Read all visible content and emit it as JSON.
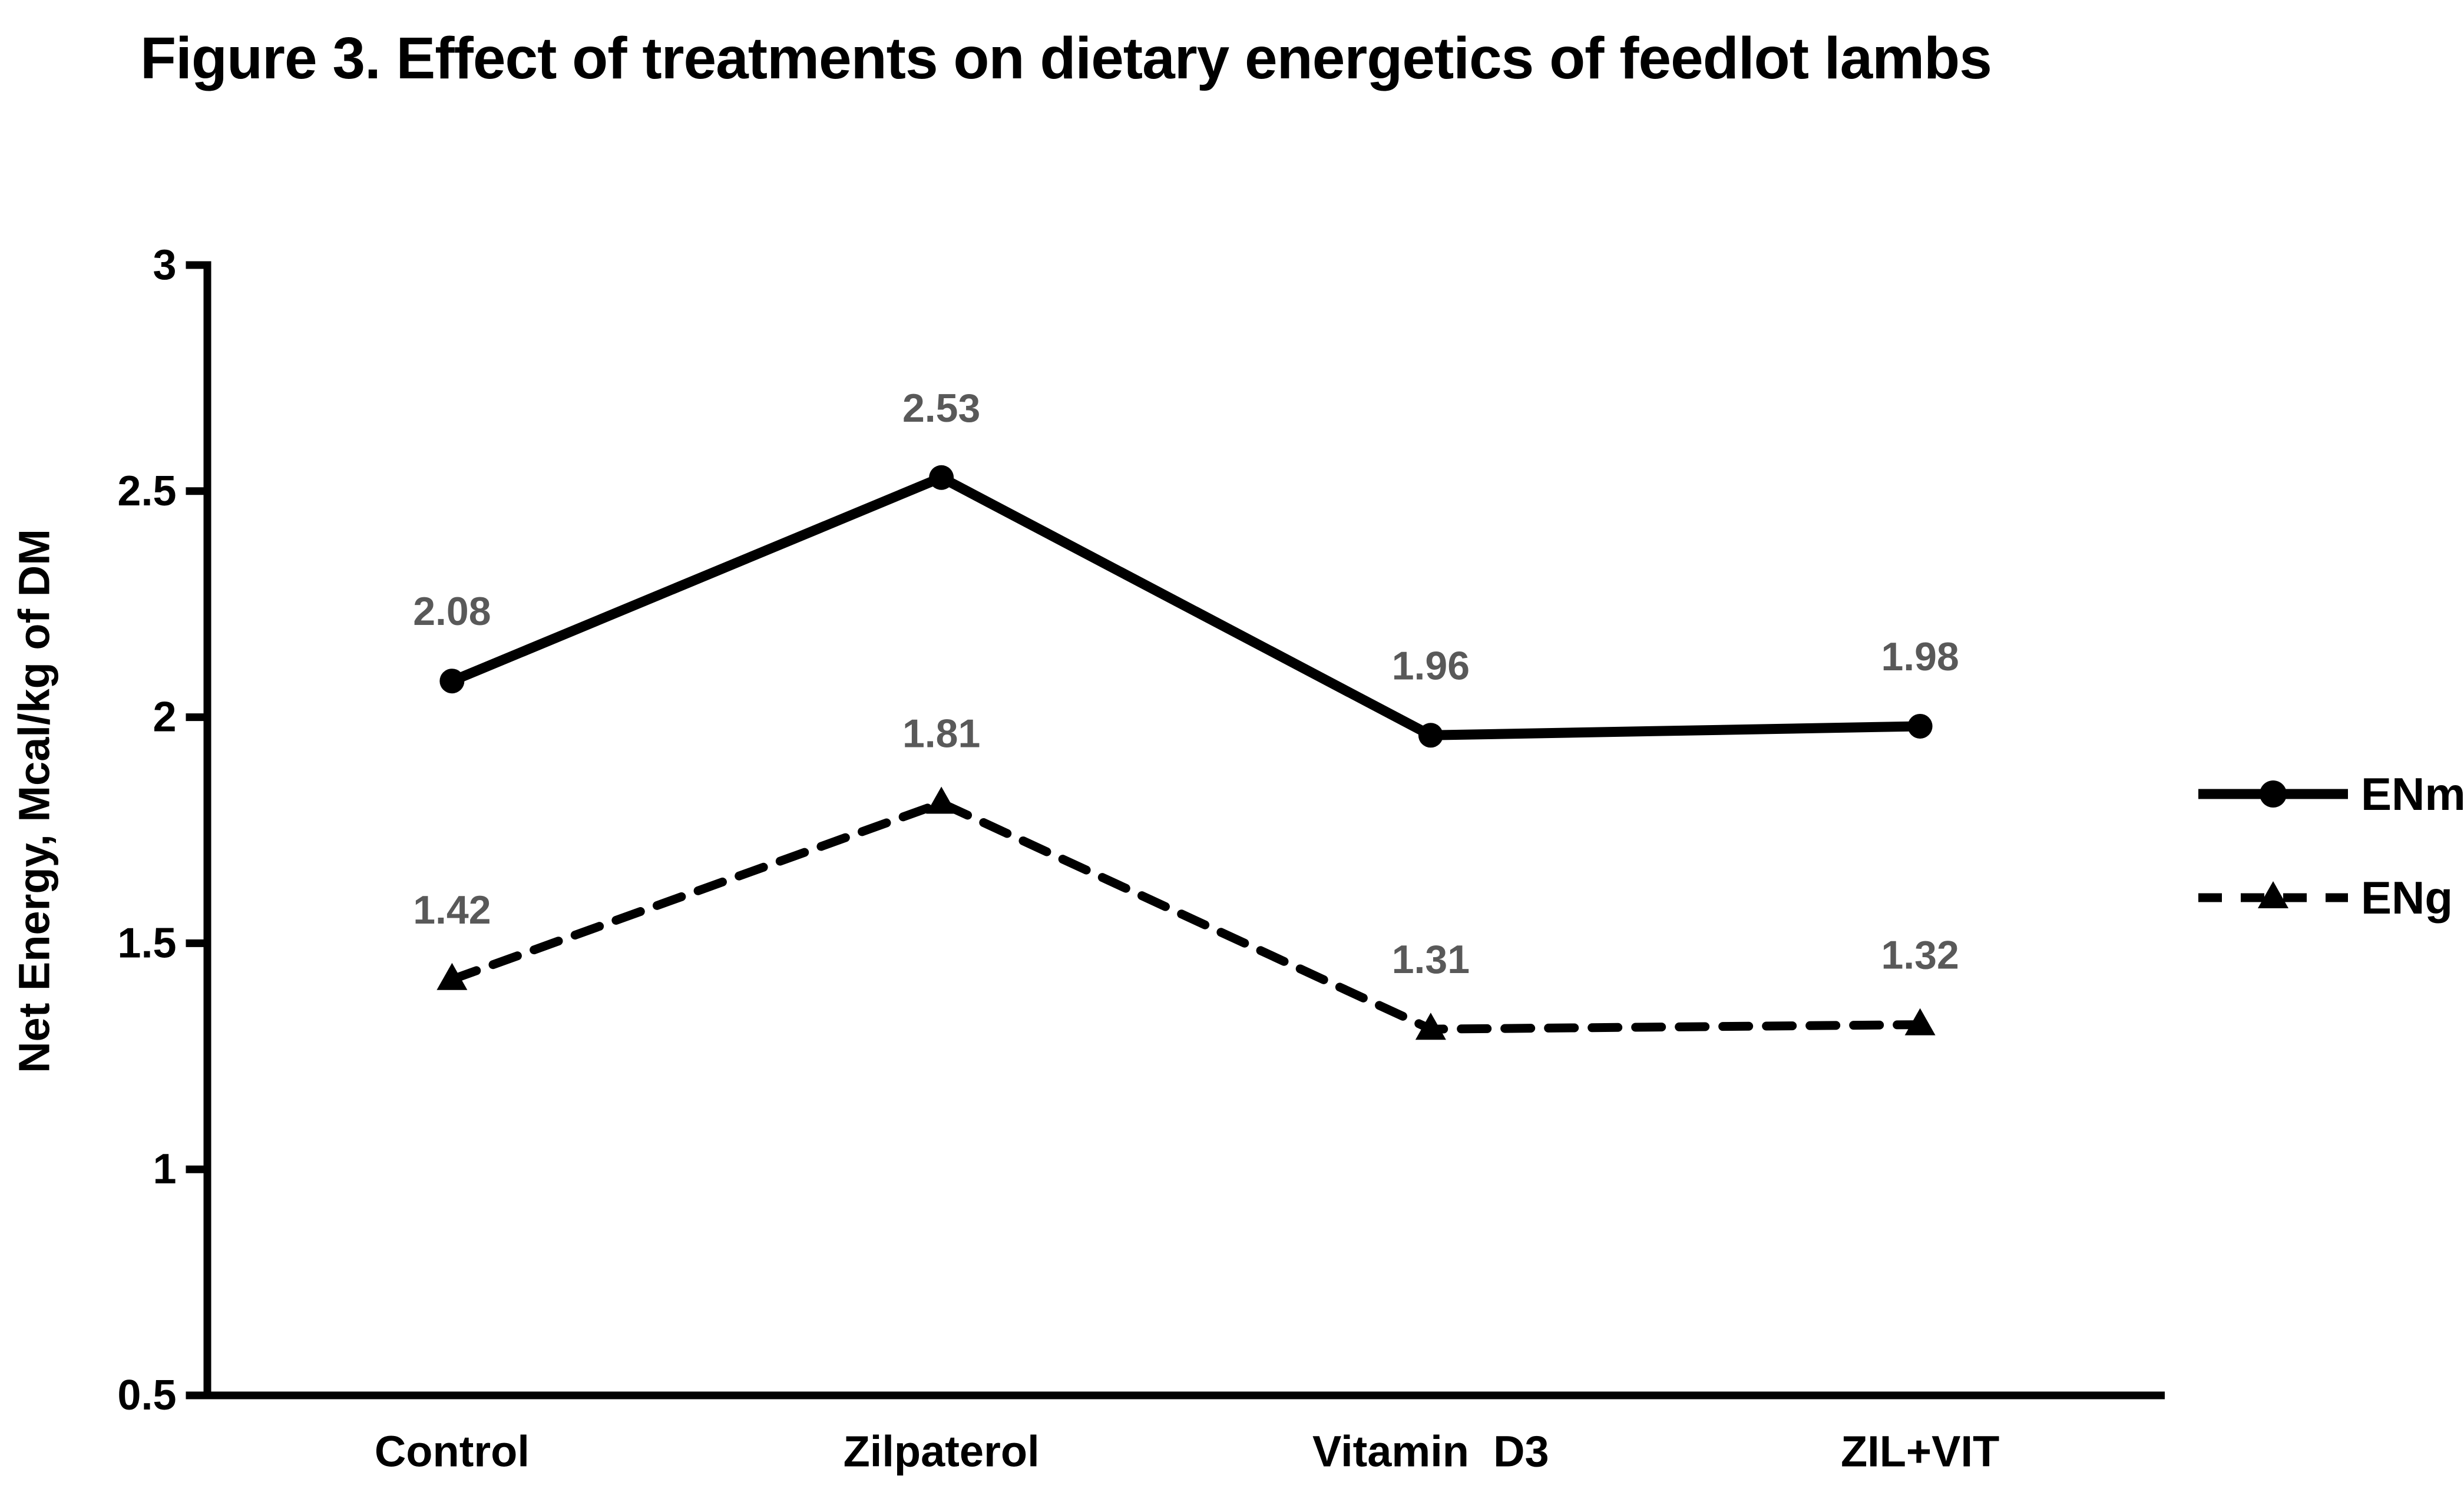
{
  "figure": {
    "title": "Figure 3. Effect of treatments on dietary energetics of feedlot lambs"
  },
  "chart_data": {
    "type": "line",
    "title": "Figure 3. Effect of treatments on dietary energetics of feedlot lambs",
    "categories": [
      "Control",
      "Zilpaterol",
      "Vitamin  D3",
      "ZIL+VIT"
    ],
    "series": [
      {
        "name": "ENm",
        "values": [
          2.08,
          2.53,
          1.96,
          1.98
        ],
        "line_style": "solid",
        "marker": "circle",
        "data_labels": [
          "2.08",
          "2.53",
          "1.96",
          "1.98"
        ]
      },
      {
        "name": "ENg",
        "values": [
          1.42,
          1.81,
          1.31,
          1.32
        ],
        "line_style": "dashed",
        "marker": "triangle",
        "data_labels": [
          "1.42",
          "1.81",
          "1.31",
          "1.32"
        ]
      }
    ],
    "xlabel": "",
    "ylabel": "Net Energy, Mcal/kg of DM",
    "ylim": [
      0.5,
      3
    ],
    "ytick_labels": [
      "0.5",
      "1",
      "1.5",
      "2",
      "2.5",
      "3"
    ],
    "grid": false,
    "legend_position": "right",
    "colors": {
      "series_line": "#000000",
      "axis": "#000000",
      "tick_label": "#000000",
      "category_label": "#000000",
      "legend_label": "#000000",
      "data_label": "#595959",
      "background": "#ffffff"
    }
  }
}
